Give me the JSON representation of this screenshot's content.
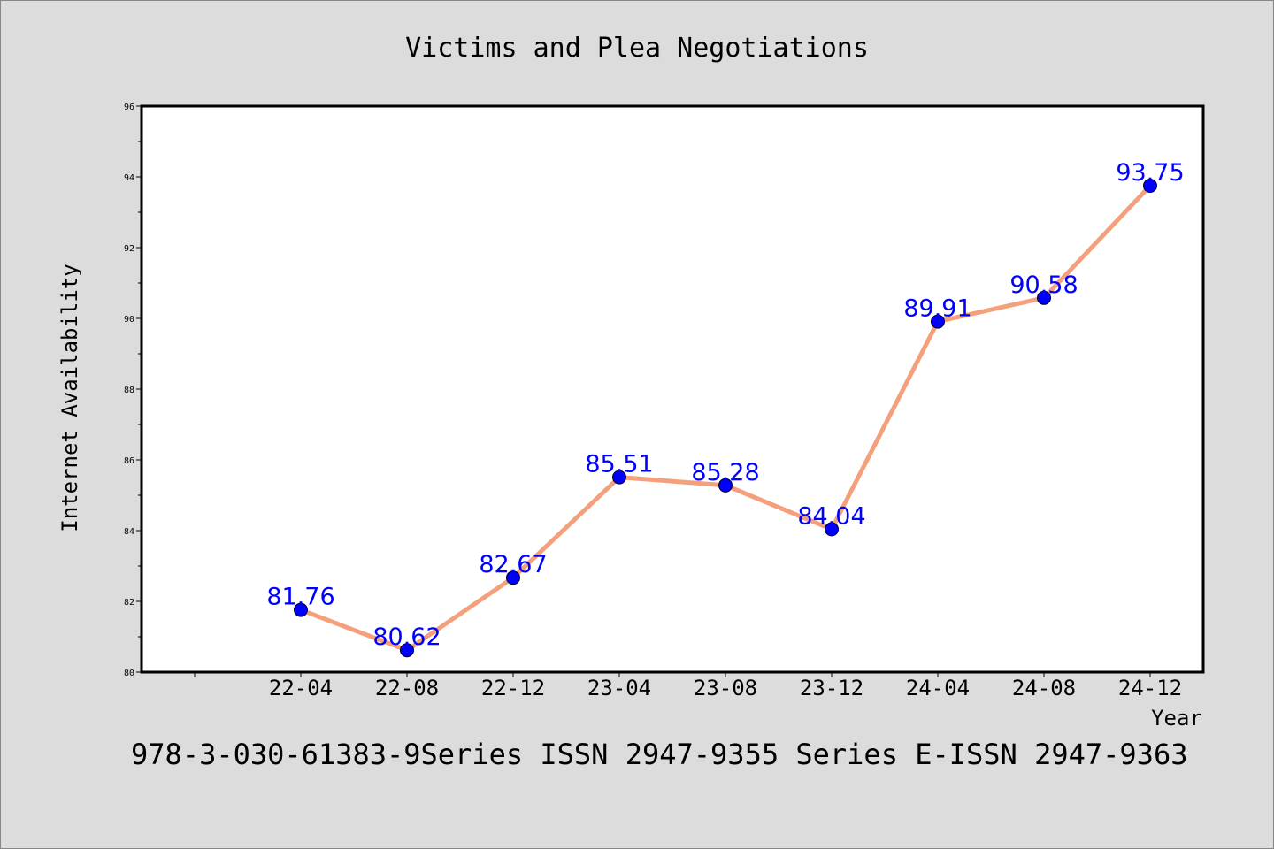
{
  "chart_data": {
    "type": "line",
    "title": "Victims and Plea Negotiations",
    "xlabel": "Year",
    "ylabel": "Internet Availability",
    "categories": [
      "22-04",
      "22-08",
      "22-12",
      "23-04",
      "23-08",
      "23-12",
      "24-04",
      "24-08",
      "24-12"
    ],
    "series": [
      {
        "values": [
          81.76,
          80.62,
          82.67,
          85.51,
          85.28,
          84.04,
          89.91,
          90.58,
          93.75
        ]
      }
    ],
    "data_labels": [
      "81.76",
      "80.62",
      "82.67",
      "85.51",
      "85.28",
      "84.04",
      "89.91",
      "90.58",
      "93.75"
    ],
    "ylim": [
      80,
      96
    ],
    "y_ticks": [
      80,
      82,
      84,
      86,
      88,
      90,
      92,
      94,
      96
    ],
    "grid": false,
    "line_color": "#f4a07c",
    "marker_color": "#0000ff",
    "label_color": "#0000ff",
    "background_color": "#dcdcdc"
  },
  "footer": "978-3-030-61383-9Series ISSN 2947-9355 Series E-ISSN 2947-9363"
}
